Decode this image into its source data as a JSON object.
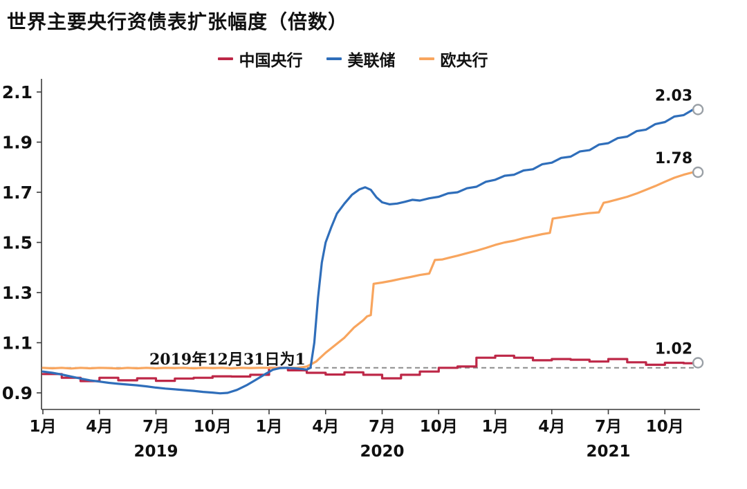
{
  "title": "世界主要央行资债表扩张幅度（倍数）",
  "chart_data": {
    "type": "line",
    "title": "世界主要央行资债表扩张幅度（倍数）",
    "baseline": {
      "value": 1.0,
      "label": "2019年12月31日为1"
    },
    "ylim": [
      0.9,
      2.1
    ],
    "yticks": [
      0.9,
      1.1,
      1.3,
      1.5,
      1.7,
      1.9,
      2.1
    ],
    "x_unit": "months-from-2019-01",
    "legend_position": "top",
    "grid": "off",
    "x_ticks": [
      {
        "m": 0,
        "label": "1月"
      },
      {
        "m": 3,
        "label": "4月"
      },
      {
        "m": 6,
        "label": "7月"
      },
      {
        "m": 9,
        "label": "10月"
      },
      {
        "m": 12,
        "label": "1月"
      },
      {
        "m": 15,
        "label": "4月"
      },
      {
        "m": 18,
        "label": "7月"
      },
      {
        "m": 21,
        "label": "10月"
      },
      {
        "m": 24,
        "label": "1月"
      },
      {
        "m": 27,
        "label": "4月"
      },
      {
        "m": 30,
        "label": "7月"
      },
      {
        "m": 33,
        "label": "10月"
      }
    ],
    "year_ticks": [
      {
        "m": 6,
        "label": "2019"
      },
      {
        "m": 18,
        "label": "2020"
      },
      {
        "m": 30,
        "label": "2021"
      }
    ],
    "series": [
      {
        "id": "pboc",
        "name": "中国央行",
        "color": "#bd2747",
        "step": true,
        "end_label": "1.02",
        "points": [
          [
            0,
            0.975
          ],
          [
            1,
            0.96
          ],
          [
            2,
            0.947
          ],
          [
            3,
            0.96
          ],
          [
            4,
            0.95
          ],
          [
            5,
            0.958
          ],
          [
            6,
            0.948
          ],
          [
            7,
            0.957
          ],
          [
            8,
            0.96
          ],
          [
            9,
            0.966
          ],
          [
            10,
            0.965
          ],
          [
            11,
            0.972
          ],
          [
            12,
            1.0
          ],
          [
            13,
            0.99
          ],
          [
            14,
            0.98
          ],
          [
            15,
            0.973
          ],
          [
            16,
            0.982
          ],
          [
            17,
            0.972
          ],
          [
            18,
            0.958
          ],
          [
            19,
            0.972
          ],
          [
            20,
            0.985
          ],
          [
            21,
            1.0
          ],
          [
            22,
            1.005
          ],
          [
            23,
            1.04
          ],
          [
            24,
            1.048
          ],
          [
            25,
            1.04
          ],
          [
            26,
            1.03
          ],
          [
            27,
            1.035
          ],
          [
            28,
            1.032
          ],
          [
            29,
            1.025
          ],
          [
            30,
            1.035
          ],
          [
            31,
            1.022
          ],
          [
            32,
            1.012
          ],
          [
            33,
            1.02
          ],
          [
            34,
            1.018
          ],
          [
            34.5,
            1.02
          ]
        ]
      },
      {
        "id": "fed",
        "name": "美联储",
        "color": "#2f6eba",
        "step": false,
        "end_label": "2.03",
        "points": [
          [
            0,
            0.985
          ],
          [
            0.5,
            0.98
          ],
          [
            1,
            0.973
          ],
          [
            1.5,
            0.965
          ],
          [
            2,
            0.957
          ],
          [
            2.5,
            0.95
          ],
          [
            3,
            0.945
          ],
          [
            3.5,
            0.94
          ],
          [
            4,
            0.936
          ],
          [
            4.5,
            0.933
          ],
          [
            5,
            0.93
          ],
          [
            5.5,
            0.926
          ],
          [
            6,
            0.921
          ],
          [
            6.5,
            0.917
          ],
          [
            7,
            0.914
          ],
          [
            7.5,
            0.911
          ],
          [
            8,
            0.908
          ],
          [
            8.5,
            0.904
          ],
          [
            9,
            0.901
          ],
          [
            9.4,
            0.898
          ],
          [
            9.8,
            0.9
          ],
          [
            10.3,
            0.912
          ],
          [
            10.8,
            0.93
          ],
          [
            11.3,
            0.952
          ],
          [
            11.8,
            0.975
          ],
          [
            12.2,
            0.992
          ],
          [
            12.6,
            0.999
          ],
          [
            13,
            1.0
          ],
          [
            13.5,
            0.997
          ],
          [
            14,
            0.993
          ],
          [
            14.2,
            1.0
          ],
          [
            14.4,
            1.1
          ],
          [
            14.6,
            1.28
          ],
          [
            14.8,
            1.42
          ],
          [
            15,
            1.5
          ],
          [
            15.3,
            1.56
          ],
          [
            15.6,
            1.615
          ],
          [
            16,
            1.655
          ],
          [
            16.4,
            1.69
          ],
          [
            16.8,
            1.712
          ],
          [
            17.1,
            1.72
          ],
          [
            17.4,
            1.71
          ],
          [
            17.7,
            1.68
          ],
          [
            18,
            1.66
          ],
          [
            18.4,
            1.652
          ],
          [
            18.8,
            1.655
          ],
          [
            19.2,
            1.662
          ],
          [
            19.6,
            1.67
          ],
          [
            20,
            1.667
          ],
          [
            20.5,
            1.676
          ],
          [
            21,
            1.682
          ],
          [
            21.5,
            1.696
          ],
          [
            22,
            1.7
          ],
          [
            22.5,
            1.716
          ],
          [
            23,
            1.722
          ],
          [
            23.5,
            1.742
          ],
          [
            24,
            1.75
          ],
          [
            24.5,
            1.766
          ],
          [
            25,
            1.77
          ],
          [
            25.5,
            1.787
          ],
          [
            26,
            1.792
          ],
          [
            26.5,
            1.812
          ],
          [
            27,
            1.818
          ],
          [
            27.5,
            1.837
          ],
          [
            28,
            1.842
          ],
          [
            28.5,
            1.863
          ],
          [
            29,
            1.868
          ],
          [
            29.5,
            1.89
          ],
          [
            30,
            1.896
          ],
          [
            30.5,
            1.916
          ],
          [
            31,
            1.922
          ],
          [
            31.5,
            1.944
          ],
          [
            32,
            1.95
          ],
          [
            32.5,
            1.972
          ],
          [
            33,
            1.98
          ],
          [
            33.5,
            2.002
          ],
          [
            34,
            2.008
          ],
          [
            34.5,
            2.03
          ]
        ]
      },
      {
        "id": "ecb",
        "name": "欧央行",
        "color": "#f8a55e",
        "step": false,
        "end_label": "1.78",
        "points": [
          [
            0,
            1.0
          ],
          [
            0.5,
            0.998
          ],
          [
            1,
            1.0
          ],
          [
            1.5,
            0.997
          ],
          [
            2,
            1.0
          ],
          [
            2.5,
            0.998
          ],
          [
            3,
            1.0
          ],
          [
            3.5,
            0.999
          ],
          [
            4,
            0.997
          ],
          [
            4.5,
            1.0
          ],
          [
            5,
            0.998
          ],
          [
            5.5,
            1.0
          ],
          [
            6,
            0.998
          ],
          [
            6.5,
            1.0
          ],
          [
            7,
            0.999
          ],
          [
            7.5,
            1.0
          ],
          [
            8,
            0.998
          ],
          [
            8.5,
            1.0
          ],
          [
            9,
            0.999
          ],
          [
            9.5,
            1.0
          ],
          [
            10,
            0.998
          ],
          [
            10.5,
            1.0
          ],
          [
            11,
            0.999
          ],
          [
            11.5,
            1.0
          ],
          [
            12,
            1.0
          ],
          [
            12.5,
            0.999
          ],
          [
            13,
            1.0
          ],
          [
            13.5,
            1.0
          ],
          [
            14,
            1.005
          ],
          [
            14.5,
            1.025
          ],
          [
            15,
            1.06
          ],
          [
            15.5,
            1.09
          ],
          [
            16,
            1.12
          ],
          [
            16.5,
            1.16
          ],
          [
            17,
            1.19
          ],
          [
            17.2,
            1.205
          ],
          [
            17.4,
            1.21
          ],
          [
            17.55,
            1.335
          ],
          [
            18,
            1.34
          ],
          [
            18.5,
            1.347
          ],
          [
            19,
            1.355
          ],
          [
            19.5,
            1.362
          ],
          [
            20,
            1.37
          ],
          [
            20.5,
            1.376
          ],
          [
            20.8,
            1.43
          ],
          [
            21.2,
            1.432
          ],
          [
            21.6,
            1.44
          ],
          [
            22,
            1.447
          ],
          [
            22.5,
            1.457
          ],
          [
            23,
            1.467
          ],
          [
            23.5,
            1.478
          ],
          [
            24,
            1.49
          ],
          [
            24.5,
            1.5
          ],
          [
            25,
            1.507
          ],
          [
            25.5,
            1.517
          ],
          [
            26,
            1.525
          ],
          [
            26.5,
            1.533
          ],
          [
            26.9,
            1.538
          ],
          [
            27.05,
            1.595
          ],
          [
            27.5,
            1.6
          ],
          [
            28,
            1.606
          ],
          [
            28.5,
            1.612
          ],
          [
            29,
            1.617
          ],
          [
            29.5,
            1.62
          ],
          [
            29.75,
            1.658
          ],
          [
            30,
            1.662
          ],
          [
            30.5,
            1.672
          ],
          [
            31,
            1.682
          ],
          [
            31.5,
            1.695
          ],
          [
            32,
            1.71
          ],
          [
            32.5,
            1.725
          ],
          [
            33,
            1.742
          ],
          [
            33.5,
            1.758
          ],
          [
            34,
            1.77
          ],
          [
            34.5,
            1.78
          ]
        ]
      }
    ]
  }
}
